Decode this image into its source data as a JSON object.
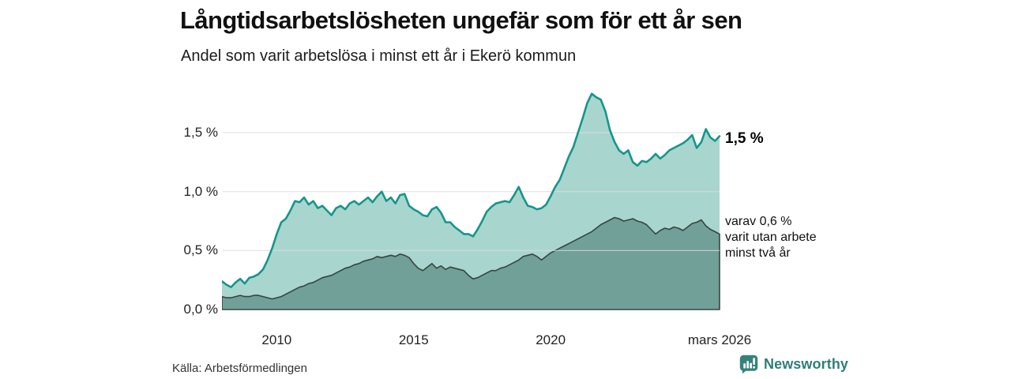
{
  "header": {
    "title": "Långtidsarbetslösheten ungefär som för ett år sen",
    "subtitle": "Andel som varit arbetslösa i minst ett år i Ekerö kommun"
  },
  "chart_data": {
    "type": "area",
    "title": "Långtidsarbetslösheten ungefär som för ett år sen",
    "subtitle": "Andel som varit arbetslösa i minst ett år i Ekerö kommun",
    "unit": "%",
    "x_start": 2008.0,
    "x_end": 2026.1667,
    "x_step_years": 0.1667,
    "ylim": [
      0,
      1.9
    ],
    "grid": "horizontal",
    "y_ticks": [
      {
        "v": 0.0,
        "label": "0,0 %"
      },
      {
        "v": 0.5,
        "label": "0,5 %"
      },
      {
        "v": 1.0,
        "label": "1,0 %"
      },
      {
        "v": 1.5,
        "label": "1,5 %"
      }
    ],
    "x_ticks": [
      {
        "x": 2010,
        "label": "2010"
      },
      {
        "x": 2015,
        "label": "2015"
      },
      {
        "x": 2020,
        "label": "2020"
      },
      {
        "x": 2026.1667,
        "label": "mars 2026"
      }
    ],
    "series": [
      {
        "name": "Arbetslösa minst ett år",
        "latest_label": "1,5 %",
        "stroke": "#14968c",
        "fill": "#a9d5cf",
        "values": [
          0.24,
          0.21,
          0.19,
          0.23,
          0.26,
          0.22,
          0.27,
          0.28,
          0.3,
          0.34,
          0.42,
          0.52,
          0.64,
          0.74,
          0.77,
          0.84,
          0.92,
          0.91,
          0.95,
          0.89,
          0.92,
          0.86,
          0.88,
          0.84,
          0.8,
          0.86,
          0.88,
          0.85,
          0.9,
          0.92,
          0.89,
          0.92,
          0.95,
          0.91,
          0.96,
          1.0,
          0.92,
          0.95,
          0.9,
          0.97,
          0.98,
          0.88,
          0.85,
          0.83,
          0.8,
          0.79,
          0.85,
          0.87,
          0.82,
          0.74,
          0.74,
          0.7,
          0.67,
          0.64,
          0.64,
          0.62,
          0.68,
          0.75,
          0.83,
          0.87,
          0.9,
          0.91,
          0.92,
          0.91,
          0.97,
          1.04,
          0.95,
          0.88,
          0.87,
          0.85,
          0.86,
          0.89,
          0.96,
          1.04,
          1.1,
          1.2,
          1.3,
          1.38,
          1.5,
          1.62,
          1.75,
          1.83,
          1.8,
          1.78,
          1.68,
          1.52,
          1.42,
          1.35,
          1.32,
          1.35,
          1.25,
          1.22,
          1.26,
          1.25,
          1.28,
          1.32,
          1.28,
          1.31,
          1.35,
          1.37,
          1.39,
          1.41,
          1.44,
          1.48,
          1.37,
          1.42,
          1.53,
          1.46,
          1.43,
          1.47
        ]
      },
      {
        "name": "Varav utan arbete minst två år",
        "latest_label": "0,6 %",
        "stroke": "#36453f",
        "fill": "#70a098",
        "values": [
          0.11,
          0.1,
          0.1,
          0.11,
          0.12,
          0.11,
          0.11,
          0.12,
          0.12,
          0.11,
          0.1,
          0.09,
          0.1,
          0.11,
          0.13,
          0.15,
          0.17,
          0.19,
          0.2,
          0.22,
          0.23,
          0.25,
          0.27,
          0.28,
          0.29,
          0.31,
          0.33,
          0.35,
          0.36,
          0.38,
          0.39,
          0.41,
          0.42,
          0.43,
          0.45,
          0.44,
          0.45,
          0.46,
          0.45,
          0.47,
          0.46,
          0.44,
          0.39,
          0.35,
          0.33,
          0.36,
          0.39,
          0.35,
          0.37,
          0.34,
          0.36,
          0.35,
          0.34,
          0.33,
          0.29,
          0.26,
          0.27,
          0.29,
          0.31,
          0.33,
          0.33,
          0.35,
          0.36,
          0.38,
          0.4,
          0.42,
          0.45,
          0.46,
          0.47,
          0.45,
          0.42,
          0.45,
          0.48,
          0.5,
          0.52,
          0.54,
          0.56,
          0.58,
          0.6,
          0.62,
          0.64,
          0.66,
          0.69,
          0.72,
          0.74,
          0.76,
          0.78,
          0.77,
          0.75,
          0.76,
          0.77,
          0.75,
          0.74,
          0.72,
          0.68,
          0.64,
          0.67,
          0.69,
          0.68,
          0.7,
          0.69,
          0.67,
          0.7,
          0.73,
          0.74,
          0.76,
          0.71,
          0.68,
          0.66,
          0.64
        ]
      }
    ]
  },
  "annotations": {
    "latest_total": "1,5 %",
    "two_year_lines": [
      "varav 0,6 %",
      "varit utan arbete",
      "minst två år"
    ]
  },
  "footer": {
    "source": "Källa: Arbetsförmedlingen",
    "brand": "Newsworthy"
  },
  "colors": {
    "series_one_year_fill": "#a9d5cf",
    "series_one_year_stroke": "#14968c",
    "series_two_year_fill": "#70a098",
    "series_two_year_stroke": "#36453f",
    "gridline": "#d9dde0",
    "brand_teal": "#35827b",
    "title_text": "#111111",
    "axis_text": "#222222"
  }
}
